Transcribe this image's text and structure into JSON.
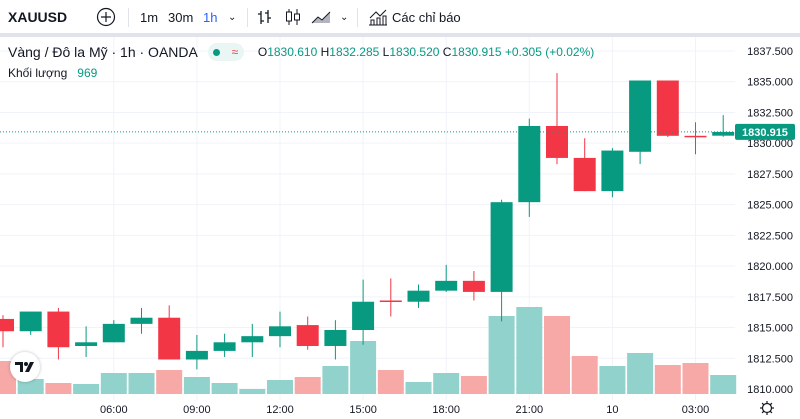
{
  "toolbar": {
    "symbol": "XAUUSD",
    "intervals": [
      "1m",
      "30m",
      "1h"
    ],
    "active_interval": "1h",
    "indicators_label": "Các chỉ báo"
  },
  "legend": {
    "title": "Vàng / Đô la Mỹ · 1h · OANDA",
    "o_label": "O",
    "o": "1830.610",
    "h_label": "H",
    "h": "1832.285",
    "l_label": "L",
    "l": "1830.520",
    "c_label": "C",
    "c": "1830.915",
    "change": "+0.305 (+0.02%)",
    "approx_symbol": "≈"
  },
  "volume": {
    "label": "Khối lượng",
    "value": "969"
  },
  "logo_text": "TV",
  "colors": {
    "up": "#089981",
    "down": "#f23645",
    "vol_up": "#92d2cc",
    "vol_down": "#f7a9a7",
    "active": "#2962ff"
  },
  "chart_data": {
    "type": "candlestick",
    "title": "XAUUSD 1h",
    "ylim": [
      1810,
      1837.5
    ],
    "y_ticks": [
      "1837.500",
      "1835.000",
      "1832.500",
      "1830.000",
      "1827.500",
      "1825.000",
      "1822.500",
      "1820.000",
      "1817.500",
      "1815.000",
      "1812.500",
      "1810.000"
    ],
    "x_ticks": [
      {
        "label": "06:00",
        "index": 4
      },
      {
        "label": "09:00",
        "index": 7
      },
      {
        "label": "12:00",
        "index": 10
      },
      {
        "label": "15:00",
        "index": 13
      },
      {
        "label": "18:00",
        "index": 16
      },
      {
        "label": "21:00",
        "index": 19
      },
      {
        "label": "10",
        "index": 22
      },
      {
        "label": "03:00",
        "index": 25
      }
    ],
    "last_price": "1830.915",
    "candles": [
      {
        "o": 1815.7,
        "h": 1816.0,
        "l": 1813.4,
        "c": 1814.7,
        "v": 1683
      },
      {
        "o": 1814.7,
        "h": 1816.3,
        "l": 1814.4,
        "c": 1816.3,
        "v": 765
      },
      {
        "o": 1816.3,
        "h": 1816.6,
        "l": 1812.4,
        "c": 1813.4,
        "v": 561
      },
      {
        "o": 1813.5,
        "h": 1815.1,
        "l": 1812.6,
        "c": 1813.8,
        "v": 510
      },
      {
        "o": 1813.8,
        "h": 1815.6,
        "l": 1813.8,
        "c": 1815.3,
        "v": 1071
      },
      {
        "o": 1815.3,
        "h": 1816.6,
        "l": 1814.5,
        "c": 1815.8,
        "v": 1071
      },
      {
        "o": 1815.8,
        "h": 1816.8,
        "l": 1812.4,
        "c": 1812.4,
        "v": 1224
      },
      {
        "o": 1812.4,
        "h": 1814.4,
        "l": 1811.6,
        "c": 1813.1,
        "v": 867
      },
      {
        "o": 1813.1,
        "h": 1814.5,
        "l": 1812.6,
        "c": 1813.8,
        "v": 561
      },
      {
        "o": 1813.8,
        "h": 1815.3,
        "l": 1812.6,
        "c": 1814.3,
        "v": 255
      },
      {
        "o": 1814.3,
        "h": 1816.3,
        "l": 1813.4,
        "c": 1815.1,
        "v": 714
      },
      {
        "o": 1815.2,
        "h": 1815.9,
        "l": 1813.2,
        "c": 1813.5,
        "v": 867
      },
      {
        "o": 1813.5,
        "h": 1815.6,
        "l": 1812.4,
        "c": 1814.8,
        "v": 1428
      },
      {
        "o": 1814.8,
        "h": 1818.9,
        "l": 1813.6,
        "c": 1817.1,
        "v": 2703
      },
      {
        "o": 1817.2,
        "h": 1819.0,
        "l": 1815.9,
        "c": 1817.1,
        "v": 1224
      },
      {
        "o": 1817.1,
        "h": 1818.5,
        "l": 1816.6,
        "c": 1818.0,
        "v": 612
      },
      {
        "o": 1818.0,
        "h": 1820.1,
        "l": 1817.9,
        "c": 1818.8,
        "v": 1071
      },
      {
        "o": 1818.8,
        "h": 1819.6,
        "l": 1817.2,
        "c": 1817.9,
        "v": 918
      },
      {
        "o": 1817.9,
        "h": 1825.4,
        "l": 1815.5,
        "c": 1825.2,
        "v": 3978
      },
      {
        "o": 1825.2,
        "h": 1832.0,
        "l": 1824.0,
        "c": 1831.4,
        "v": 4437
      },
      {
        "o": 1831.4,
        "h": 1835.7,
        "l": 1828.3,
        "c": 1828.8,
        "v": 3978
      },
      {
        "o": 1828.8,
        "h": 1830.4,
        "l": 1826.1,
        "c": 1826.1,
        "v": 1938
      },
      {
        "o": 1826.1,
        "h": 1829.6,
        "l": 1825.6,
        "c": 1829.4,
        "v": 1428
      },
      {
        "o": 1829.3,
        "h": 1835.1,
        "l": 1828.3,
        "c": 1835.1,
        "v": 2091
      },
      {
        "o": 1835.1,
        "h": 1835.1,
        "l": 1830.5,
        "c": 1830.6,
        "v": 1479
      },
      {
        "o": 1830.6,
        "h": 1831.7,
        "l": 1829.1,
        "c": 1830.5,
        "v": 1581
      },
      {
        "o": 1830.61,
        "h": 1832.285,
        "l": 1830.52,
        "c": 1830.915,
        "v": 969
      }
    ]
  }
}
